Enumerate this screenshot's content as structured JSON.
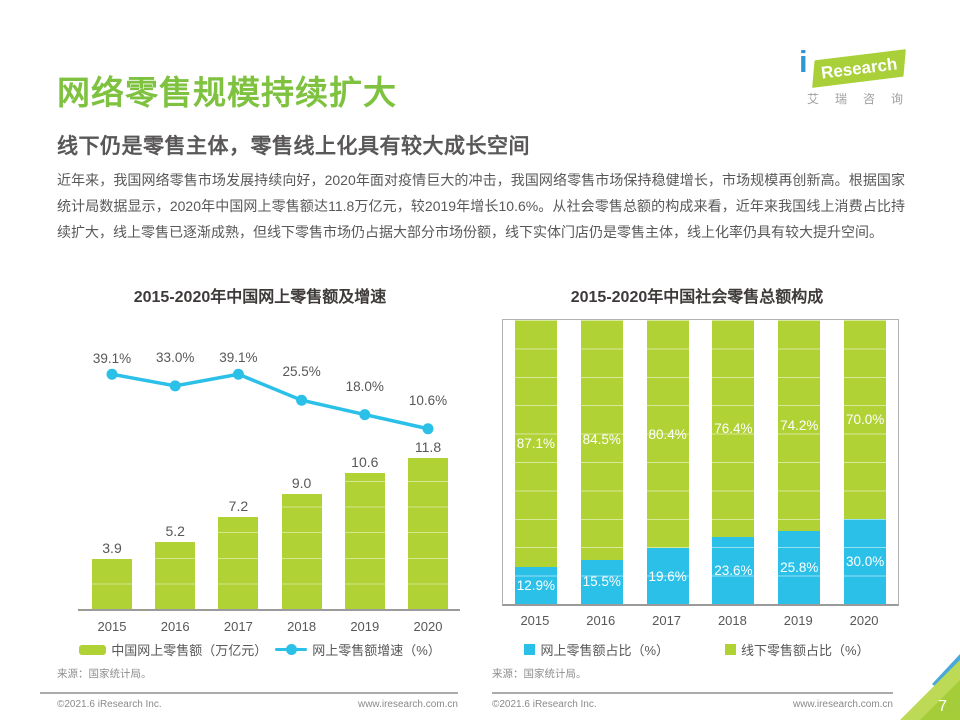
{
  "header": {
    "title": "网络零售规模持续扩大",
    "subtitle": "线下仍是零售主体，零售线上化具有较大成长空间"
  },
  "logo": {
    "initial": "i",
    "wordmark": "Research",
    "chinese": "艾瑞咨询"
  },
  "body": {
    "paragraph": "近年来，我国网络零售市场发展持续向好，2020年面对疫情巨大的冲击，我国网络零售市场保持稳健增长，市场规模再创新高。根据国家统计局数据显示，2020年中国网上零售额达11.8万亿元，较2019年增长10.6%。从社会零售总额的构成来看，近年来我国线上消费占比持续扩大，线上零售已逐渐成熟，但线下零售市场仍占据大部分市场份额，线下实体门店仍是零售主体，线上化率仍具有较大提升空间。"
  },
  "chart_data": [
    {
      "type": "bar",
      "subtype": "bar-line-combo",
      "title": "2015-2020年中国网上零售额及增速",
      "categories": [
        "2015",
        "2016",
        "2017",
        "2018",
        "2019",
        "2020"
      ],
      "bar_series": {
        "name": "中国网上零售额（万亿元）",
        "values": [
          3.9,
          5.2,
          7.2,
          9.0,
          10.6,
          11.8
        ],
        "labels": [
          "3.9",
          "5.2",
          "7.2",
          "9.0",
          "10.6",
          "11.8"
        ],
        "color": "#b1d235",
        "axis_range": [
          0,
          13
        ]
      },
      "line_series": {
        "name": "网上零售额增速（%）",
        "values": [
          39.1,
          33.0,
          39.1,
          25.5,
          18.0,
          10.6
        ],
        "labels": [
          "39.1%",
          "33.0%",
          "39.1%",
          "25.5%",
          "18.0%",
          "10.6%"
        ],
        "color": "#2bc0e8"
      },
      "legend_position": "bottom",
      "grid": false,
      "source": "来源：国家统计局。"
    },
    {
      "type": "bar",
      "subtype": "stacked-bar-100",
      "title": "2015-2020年中国社会零售总额构成",
      "categories": [
        "2015",
        "2016",
        "2017",
        "2018",
        "2019",
        "2020"
      ],
      "series": [
        {
          "name": "网上零售额占比（%）",
          "values": [
            12.9,
            15.5,
            19.6,
            23.6,
            25.8,
            30.0
          ],
          "labels": [
            "12.9%",
            "15.5%",
            "19.6%",
            "23.6%",
            "25.8%",
            "30.0%"
          ],
          "color": "#2bc0e8"
        },
        {
          "name": "线下零售额占比（%）",
          "values": [
            87.1,
            84.5,
            80.4,
            76.4,
            74.2,
            70.0
          ],
          "labels": [
            "87.1%",
            "84.5%",
            "80.4%",
            "76.4%",
            "74.2%",
            "70.0%"
          ],
          "color": "#b1d235"
        }
      ],
      "ylim": [
        0,
        100
      ],
      "legend_position": "bottom",
      "grid": false,
      "source": "来源：国家统计局。"
    }
  ],
  "footer": {
    "copyright": "©2021.6 iResearch Inc.",
    "website": "www.iresearch.com.cn",
    "page_number": "7"
  },
  "colors": {
    "brand_green": "#b1d235",
    "title_green": "#7ec23f",
    "accent_blue": "#2bc0e8",
    "logo_blue": "#2e96d5",
    "text_gray": "#595757"
  }
}
